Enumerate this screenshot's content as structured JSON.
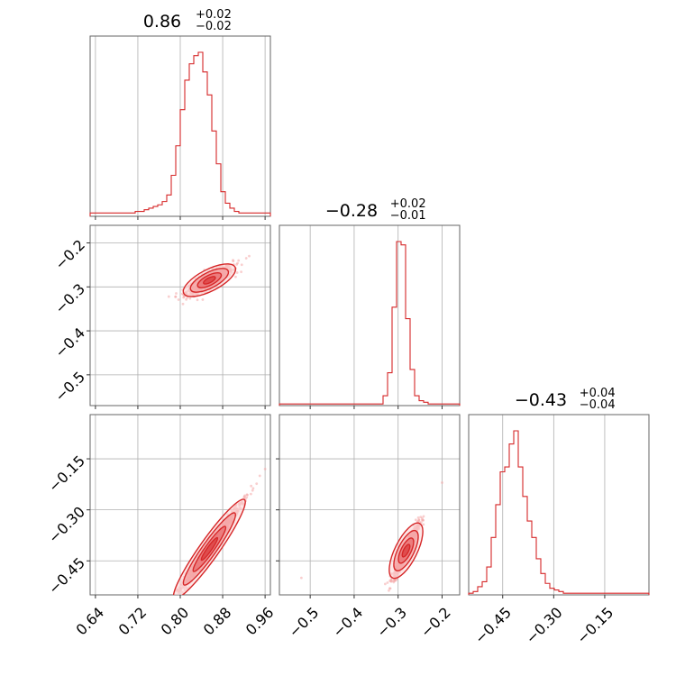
{
  "chart_data": {
    "type": "corner",
    "color": "#d62728",
    "point_color": "#f4a7a8",
    "grid": true,
    "parameters": [
      {
        "title": {
          "median": "0.86",
          "plus": "+0.02",
          "minus": "−0.02"
        },
        "range": [
          0.63,
          0.97
        ],
        "ticks": [
          0.64,
          0.72,
          0.8,
          0.88,
          0.96
        ],
        "tick_labels": [
          "0.64",
          "0.72",
          "0.80",
          "0.88",
          "0.96"
        ]
      },
      {
        "title": {
          "median": "−0.28",
          "plus": "+0.02",
          "minus": "−0.01"
        },
        "range": [
          -0.57,
          -0.16
        ],
        "ticks": [
          -0.5,
          -0.4,
          -0.3,
          -0.2
        ],
        "tick_labels": [
          "−0.5",
          "−0.4",
          "−0.3",
          "−0.2"
        ]
      },
      {
        "title": {
          "median": "−0.43",
          "plus": "+0.04",
          "minus": "−0.04"
        },
        "range": [
          -0.55,
          -0.02
        ],
        "ticks": [
          -0.45,
          -0.3,
          -0.15
        ],
        "tick_labels": [
          "−0.45",
          "−0.30",
          "−0.15"
        ]
      }
    ],
    "histograms": [
      {
        "bin_start": 0.63,
        "bin_width": 0.0085,
        "counts": [
          0.02,
          0.02,
          0.02,
          0.02,
          0.02,
          0.02,
          0.02,
          0.02,
          0.02,
          0.02,
          0.03,
          0.03,
          0.04,
          0.05,
          0.06,
          0.07,
          0.09,
          0.13,
          0.25,
          0.43,
          0.65,
          0.83,
          0.93,
          0.98,
          1.0,
          0.88,
          0.74,
          0.52,
          0.32,
          0.15,
          0.08,
          0.05,
          0.03,
          0.02,
          0.02,
          0.02,
          0.02,
          0.02,
          0.02,
          0.02
        ]
      },
      {
        "bin_start": -0.57,
        "bin_width": 0.01025,
        "counts": [
          0.01,
          0.01,
          0.01,
          0.01,
          0.01,
          0.01,
          0.01,
          0.01,
          0.01,
          0.01,
          0.01,
          0.01,
          0.01,
          0.01,
          0.01,
          0.01,
          0.01,
          0.01,
          0.01,
          0.01,
          0.01,
          0.01,
          0.01,
          0.06,
          0.2,
          0.6,
          1.0,
          0.98,
          0.53,
          0.22,
          0.06,
          0.03,
          0.02,
          0.01,
          0.01,
          0.01,
          0.01,
          0.01,
          0.01,
          0.01
        ]
      },
      {
        "bin_start": -0.55,
        "bin_width": 0.01325,
        "counts": [
          0.01,
          0.02,
          0.05,
          0.08,
          0.17,
          0.35,
          0.55,
          0.75,
          0.78,
          0.92,
          1.0,
          0.78,
          0.6,
          0.45,
          0.35,
          0.22,
          0.13,
          0.07,
          0.04,
          0.03,
          0.02,
          0.01,
          0.01,
          0.01,
          0.01,
          0.01,
          0.01,
          0.01,
          0.01,
          0.01,
          0.01,
          0.01,
          0.01,
          0.01,
          0.01,
          0.01,
          0.01,
          0.01,
          0.01,
          0.01
        ]
      }
    ],
    "pair_plots": [
      {
        "x": 0,
        "y": 1,
        "center": [
          0.855,
          -0.285
        ],
        "spread": [
          0.022,
          0.009
        ],
        "slope": 0.62,
        "tail": [
          [
            0.91,
            -0.24
          ],
          [
            0.93,
            -0.23
          ]
        ]
      },
      {
        "x": 0,
        "y": 2,
        "center": [
          0.855,
          -0.415
        ],
        "spread": [
          0.03,
          0.01
        ],
        "slope": 2.2,
        "tail": [
          [
            0.95,
            -0.2
          ],
          [
            0.96,
            -0.18
          ]
        ]
      },
      {
        "x": 1,
        "y": 2,
        "center": [
          -0.282,
          -0.42
        ],
        "spread": [
          0.014,
          0.012
        ],
        "slope": 2.6,
        "tail": [
          [
            -0.2,
            -0.22
          ],
          [
            -0.52,
            -0.5
          ]
        ]
      }
    ]
  }
}
